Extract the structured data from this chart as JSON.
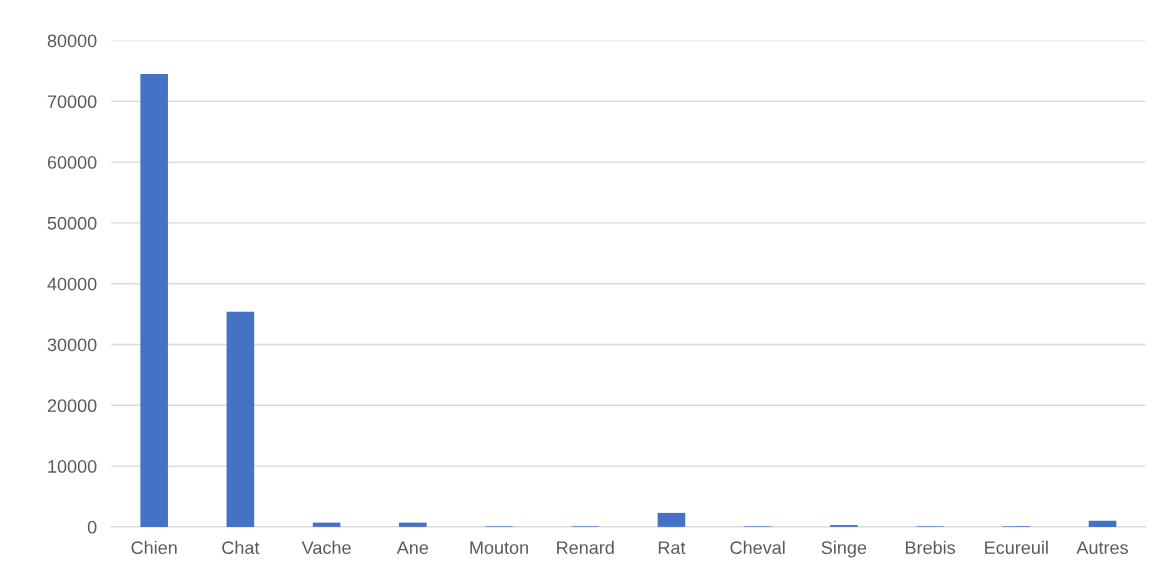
{
  "chart_data": {
    "type": "bar",
    "categories": [
      "Chien",
      "Chat",
      "Vache",
      "Ane",
      "Mouton",
      "Renard",
      "Rat",
      "Cheval",
      "Singe",
      "Brebis",
      "Ecureuil",
      "Autres"
    ],
    "values": [
      74500,
      35400,
      700,
      700,
      100,
      100,
      2300,
      100,
      300,
      100,
      100,
      1000
    ],
    "color": "#4472c4",
    "ylim": [
      0,
      80000
    ],
    "yticks": [
      0,
      10000,
      20000,
      30000,
      40000,
      50000,
      60000,
      70000,
      80000
    ],
    "grid": "y"
  }
}
